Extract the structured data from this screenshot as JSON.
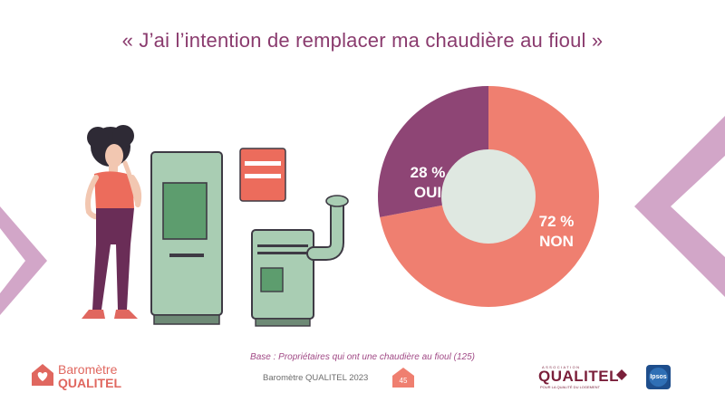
{
  "title": "« J’ai l’intention de remplacer ma chaudière au fioul »",
  "chart_data": {
    "type": "pie",
    "donut": true,
    "slices": [
      {
        "label": "NON",
        "value": 72,
        "value_label": "72 %",
        "color": "#ef7f70"
      },
      {
        "label": "OUI",
        "value": 28,
        "value_label": "28 %",
        "color": "#8e4575"
      }
    ]
  },
  "base_note": "Base : Propriétaires qui ont une chaudière au fioul (125)",
  "footer": {
    "text": "Baromètre QUALITEL 2023",
    "page_number": "45"
  },
  "brand": {
    "line1": "Baromètre",
    "line2": "QUALITEL"
  },
  "association": {
    "small": "ASSOCIATION",
    "name": "QUALITEL",
    "tagline": "POUR LA QUALITÉ DU LOGEMENT"
  },
  "ipsos": "Ipsos",
  "colors": {
    "accent": "#8a3b6e",
    "coral": "#ef7f70",
    "plum": "#8e4575",
    "lilac": "#d2a6c8"
  }
}
